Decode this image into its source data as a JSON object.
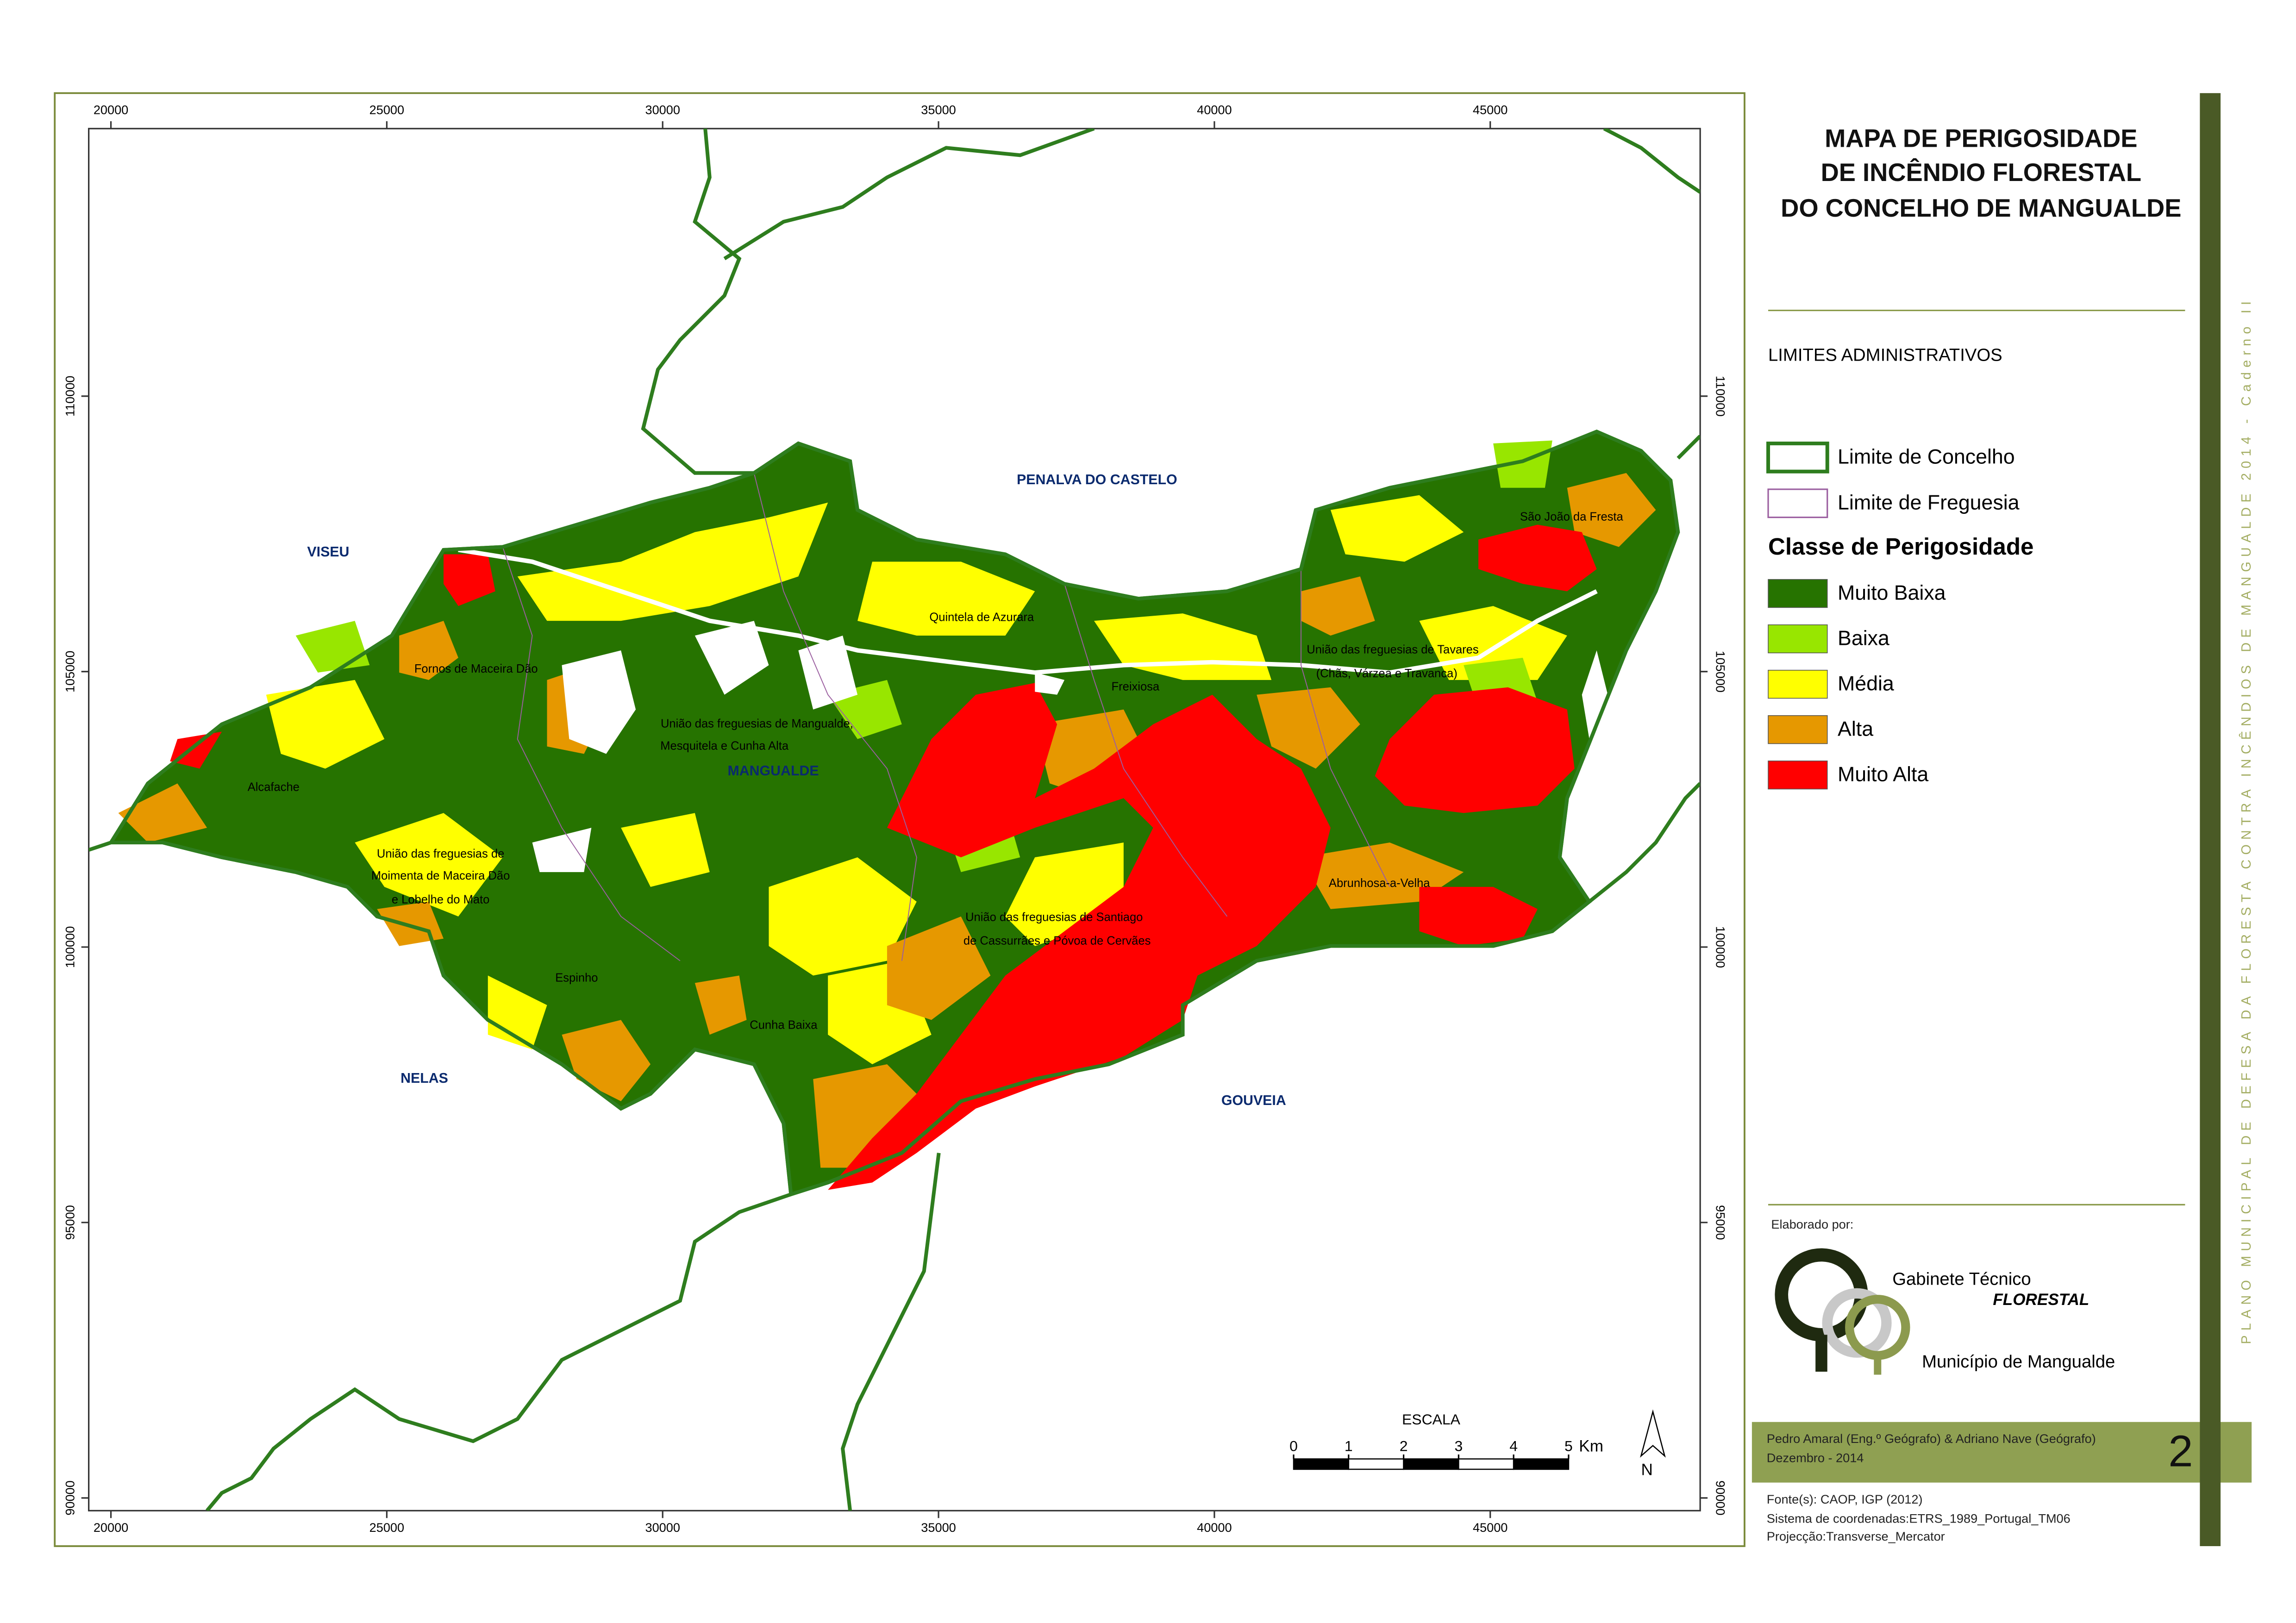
{
  "title": [
    "MAPA DE PERIGOSIDADE",
    "DE INCÊNDIO FLORESTAL",
    "DO CONCELHO DE MANGUALDE"
  ],
  "map": {
    "x_ticks": [
      20000,
      25000,
      30000,
      35000,
      40000,
      45000
    ],
    "y_ticks": [
      90000,
      95000,
      100000,
      105000,
      110000
    ],
    "municipalities": [
      "VISEU",
      "PENALVA DO CASTELO",
      "MANGUALDE",
      "NELAS",
      "GOUVEIA"
    ],
    "parishes": [
      "Fornos de Maceira Dão",
      "União das freguesias de Mangualde,",
      "Mesquitela e Cunha Alta",
      "Alcafache",
      "União das freguesias de",
      "Moimenta de Maceira Dão",
      "e Lobelhe do Mato",
      "Espinho",
      "Cunha Baixa",
      "Quintela de Azurara",
      "Freixiosa",
      "União das freguesias de Tavares",
      "(Chãs, Várzea e Travanca)",
      "São João da Fresta",
      "Abrunhosa-a-Velha",
      "União das freguesias de Santiago",
      "de Cassurrães e Póvoa de Cervães"
    ]
  },
  "legend": {
    "admin_title": "LIMITES ADMINISTRATIVOS",
    "admin_items": [
      {
        "label": "Limite de Concelho",
        "color": "#2e7d1e"
      },
      {
        "label": "Limite de Freguesia",
        "color": "#9b5fa0"
      }
    ],
    "hazard_title": "Classe de Perigosidade",
    "hazard_classes": [
      {
        "label": "Muito Baixa",
        "color": "#267300"
      },
      {
        "label": "Baixa",
        "color": "#98e600"
      },
      {
        "label": "Média",
        "color": "#ffff00"
      },
      {
        "label": "Alta",
        "color": "#e69800"
      },
      {
        "label": "Muito Alta",
        "color": "#ff0000"
      }
    ]
  },
  "scale": {
    "title": "ESCALA",
    "ticks": [
      0,
      1,
      2,
      3,
      4,
      5
    ],
    "unit": "Km",
    "north": "N"
  },
  "credits": {
    "made_by": "Elaborado por:",
    "logo_line1": "Gabinete Técnico",
    "logo_line2": "FLORESTAL",
    "logo_line3": "Município de Mangualde",
    "authors": "Pedro Amaral (Eng.º Geógrafo) & Adriano Nave (Geógrafo)",
    "date": "Dezembro - 2014",
    "page_number": "2",
    "source": "Fonte(s): CAOP, IGP (2012)",
    "crs": "Sistema de coordenadas:ETRS_1989_Portugal_TM06",
    "projection": "Projecção:Transverse_Mercator"
  },
  "side_text": "PLANO MUNICIPAL DE DEFESA DA FLORESTA CONTRA INCÊNDIOS DE MANGUALDE 2014 - Caderno II"
}
